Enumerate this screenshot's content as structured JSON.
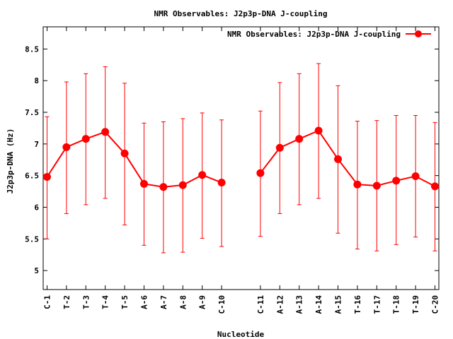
{
  "chart_data": {
    "type": "line",
    "title": "NMR Observables: J2p3p-DNA J-coupling",
    "xlabel": "Nucleotide",
    "ylabel": "J2p3p-DNA (Hz)",
    "legend_position": "top-right",
    "color": "#ff0000",
    "ylim": [
      4.7,
      8.85
    ],
    "yticks": [
      5,
      5.5,
      6,
      6.5,
      7,
      7.5,
      8,
      8.5
    ],
    "ytick_labels": [
      "5",
      "5.5",
      "6",
      "6.5",
      "7",
      "7.5",
      "8",
      "8.5"
    ],
    "xlim": [
      0.8,
      21.2
    ],
    "gap_between": [
      10,
      11
    ],
    "categories": [
      "C-1",
      "T-2",
      "T-3",
      "T-4",
      "T-5",
      "A-6",
      "A-7",
      "A-8",
      "A-9",
      "C-10",
      "C-11",
      "A-12",
      "A-13",
      "A-14",
      "A-15",
      "T-16",
      "T-17",
      "T-18",
      "T-19",
      "C-20"
    ],
    "x_positions": [
      1,
      2,
      3,
      4,
      5,
      6,
      7,
      8,
      9,
      10,
      12,
      13,
      14,
      15,
      16,
      17,
      18,
      19,
      20,
      21
    ],
    "series": [
      {
        "name": "NMR Observables: J2p3p-DNA J-coupling",
        "values": [
          6.48,
          6.95,
          7.08,
          7.19,
          6.85,
          6.37,
          6.32,
          6.35,
          6.51,
          6.39,
          6.54,
          6.94,
          7.08,
          7.21,
          6.76,
          6.36,
          6.34,
          6.42,
          6.49,
          6.33
        ],
        "error_low": [
          5.5,
          5.9,
          6.04,
          6.14,
          5.72,
          5.4,
          5.28,
          5.29,
          5.51,
          5.38,
          5.54,
          5.9,
          6.04,
          6.14,
          5.59,
          5.34,
          5.31,
          5.41,
          5.53,
          5.31
        ],
        "error_high": [
          7.43,
          7.98,
          8.11,
          8.22,
          7.96,
          7.33,
          7.35,
          7.4,
          7.49,
          7.38,
          7.52,
          7.97,
          8.11,
          8.27,
          7.92,
          7.36,
          7.37,
          7.45,
          7.45,
          7.34
        ]
      }
    ]
  }
}
